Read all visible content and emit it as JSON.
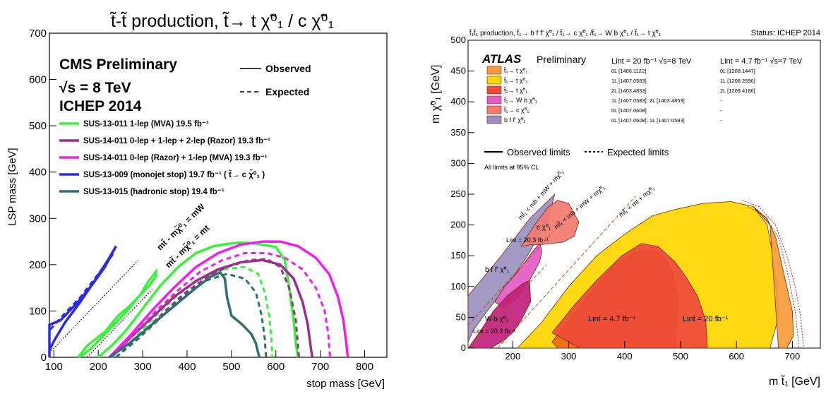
{
  "chart_data": [
    {
      "type": "line",
      "title": "t̃-t̃ production,  t̃→ t χ̃⁰₁ / c χ̃⁰₁",
      "xlabel": "stop mass [GeV]",
      "ylabel": "LSP mass [GeV]",
      "xlim": [
        90,
        850
      ],
      "ylim": [
        0,
        700
      ],
      "xticks": [
        "100",
        "200",
        "300",
        "400",
        "500",
        "600",
        "700",
        "800"
      ],
      "yticks": [
        "0",
        "100",
        "200",
        "300",
        "400",
        "500",
        "600",
        "700"
      ],
      "header_lines": [
        "CMS Preliminary",
        "√s = 8 TeV",
        "ICHEP 2014"
      ],
      "style_legend": {
        "observed": "Observed",
        "expected": "Expected"
      },
      "kinematic_labels": [
        "mt̃ - mχ̃⁰₁ = mW",
        "mt̃ - mχ̃⁰₁ = mt"
      ],
      "kinematic_lines": [
        {
          "name": "mt̃ - mχ̃⁰₁ = mW",
          "x": [
            90,
            290
          ],
          "y": [
            9.6,
            209.6
          ]
        },
        {
          "name": "mt̃ - mχ̃⁰₁ = mt",
          "x": [
            175,
            322
          ],
          "y": [
            0,
            147
          ]
        }
      ],
      "series": [
        {
          "name": "SUS-13-011  1-lep (MVA) 19.5 fb⁻¹",
          "color": "#3ef03e",
          "observed": {
            "x": [
              155,
              175,
              215,
              245,
              270,
              295,
              310,
              330,
              330,
              315,
              290,
              265,
              235,
              210,
              185,
              165,
              155
            ],
            "y": [
              0,
              25,
              55,
              90,
              110,
              135,
              160,
              185,
              175,
              155,
              130,
              100,
              70,
              45,
              20,
              5,
              0
            ]
          },
          "observed_main": {
            "x": [
              200,
              230,
              260,
              300,
              340,
              380,
              420,
              460,
              490,
              525,
              560,
              600,
              620,
              630,
              640,
              645,
              650
            ],
            "y": [
              0,
              25,
              55,
              105,
              155,
              195,
              225,
              240,
              245,
              248,
              245,
              238,
              210,
              150,
              80,
              30,
              0
            ]
          },
          "expected": {
            "x": [
              230,
              280,
              330,
              380,
              430,
              480,
              530,
              560,
              575,
              585,
              590,
              592
            ],
            "y": [
              0,
              40,
              90,
              135,
              170,
              190,
              195,
              180,
              140,
              90,
              40,
              0
            ]
          }
        },
        {
          "name": "SUS-14-011  0-lep + 1-lep + 2-lep (Razor)  19.3 fb⁻¹",
          "color": "#9b2f8e",
          "observed": {
            "x": [
              225,
              270,
              320,
              370,
              420,
              470,
              520,
              570,
              610,
              640,
              660,
              672,
              678,
              682
            ],
            "y": [
              0,
              40,
              85,
              130,
              165,
              190,
              205,
              210,
              200,
              170,
              120,
              70,
              25,
              0
            ]
          },
          "expected": {
            "x": [
              240,
              290,
              340,
              390,
              440,
              490,
              540,
              580,
              610,
              630,
              645,
              652
            ],
            "y": [
              0,
              45,
              90,
              135,
              170,
              195,
              210,
              212,
              195,
              150,
              80,
              0
            ]
          }
        },
        {
          "name": "SUS-14-011  0-lep (Razor) + 1-lep (MVA)  19.3 fb⁻¹",
          "color": "#ee1eee",
          "observed": {
            "x": [
              225,
              270,
              320,
              370,
              420,
              470,
              520,
              570,
              610,
              650,
              690,
              720,
              740,
              752,
              758,
              762
            ],
            "y": [
              0,
              45,
              100,
              150,
              195,
              225,
              243,
              250,
              250,
              240,
              215,
              180,
              130,
              80,
              35,
              0
            ]
          },
          "expected": {
            "x": [
              230,
              280,
              330,
              380,
              430,
              480,
              530,
              580,
              620,
              660,
              690,
              710,
              718,
              722
            ],
            "y": [
              0,
              50,
              100,
              145,
              185,
              210,
              225,
              225,
              215,
              190,
              150,
              100,
              50,
              0
            ]
          }
        },
        {
          "name": "SUS-13-009  (monojet stop)  19.7 fb⁻¹ ( t̃→ c χ̃⁰₁ )",
          "color": "#2b2be6",
          "observed": {
            "x": [
              90,
              90,
              115,
              150,
              185,
              215,
              240,
              225,
              195,
              160,
              125,
              100,
              90
            ],
            "y": [
              0,
              70,
              80,
              115,
              155,
              195,
              240,
              215,
              170,
              120,
              75,
              35,
              15
            ]
          },
          "expected": {
            "x": [
              92,
              120,
              160,
              200,
              235
            ],
            "y": [
              60,
              90,
              130,
              180,
              225
            ]
          }
        },
        {
          "name": "SUS-13-015  (hadronic stop)  19.4 fb⁻¹",
          "color": "#2f6f6f",
          "observed": {
            "x": [
              225,
              270,
              320,
              370,
              420,
              455,
              475,
              485,
              490,
              500,
              525,
              545,
              555,
              560,
              563
            ],
            "y": [
              0,
              30,
              70,
              110,
              150,
              175,
              183,
              170,
              130,
              90,
              70,
              50,
              30,
              10,
              0
            ]
          },
          "expected": {
            "x": [
              240,
              290,
              340,
              390,
              440,
              490,
              530,
              555,
              568,
              575,
              578
            ],
            "y": [
              0,
              40,
              85,
              130,
              165,
              180,
              170,
              140,
              90,
              40,
              0
            ]
          }
        }
      ]
    },
    {
      "type": "area",
      "top_left_title": "t̃₁t̃₁ production, t̃₁→ b f f' χ̃⁰₁ / t̃₁→ c χ̃⁰₁ /t̃₁→ W b χ̃⁰₁ / t̃₁→ t χ̃⁰₁",
      "status": "Status: ICHEP 2014",
      "xlabel": "m t̃₁ [GeV]",
      "ylabel": "m χ̃⁰₁ [GeV]",
      "xlim": [
        120,
        750
      ],
      "ylim": [
        0,
        500
      ],
      "xticks": [
        "200",
        "300",
        "400",
        "500",
        "600",
        "700"
      ],
      "yticks": [
        "0",
        "50",
        "100",
        "150",
        "200",
        "250",
        "300",
        "350",
        "400",
        "450",
        "500"
      ],
      "experiment": "ATLAS",
      "experiment_sub": "Preliminary",
      "lumi_8tev": "Lint = 20 fb⁻¹ √s=8 TeV",
      "lumi_7tev": "Lint = 4.7 fb⁻¹ √s=7 TeV",
      "legend": [
        {
          "label": "t̃₁→ t χ̃⁰₁",
          "color": "#f59b3a",
          "ref8": "0L [1406.1122]",
          "ref7": "0L [1208.1447]"
        },
        {
          "label": "t̃₁→ t χ̃⁰₁",
          "color": "#ffd700",
          "ref8": "1L [1407.0583]",
          "ref7": "1L [1208.2590]"
        },
        {
          "label": "t̃₁→ t χ̃⁰₁",
          "color": "#ee4a3a",
          "ref8": "2L [1403.4853]",
          "ref7": "2L [1209.4186]"
        },
        {
          "label": "t̃₁→ W b χ̃⁰₁",
          "color": "#e45cc4",
          "ref8": "1L [1407.0583], 2L [1403.4853]",
          "ref7": "-"
        },
        {
          "label": "t̃₁→ c χ̃⁰₁",
          "color": "#f27a70",
          "ref8": "0L [1407.0608]",
          "ref7": "-"
        },
        {
          "label": "b f f' χ̃⁰₁",
          "color": "#9a90c0",
          "ref8": "0L [1407.0608], 1L [1407.0583]",
          "ref7": "-"
        }
      ],
      "line_legend": {
        "observed": "Observed limits",
        "expected": "Expected limits"
      },
      "cl_note": "All limits at 95% CL",
      "diag_labels": [
        "mt̃₁ < mb + mW + mχ̃⁰₁",
        "mt̃₁ < mb + mW + mχ̃⁰₁",
        "mt̃₁ < mt + mχ̃⁰₁"
      ],
      "region_labels": {
        "c_chi": "c χ̃⁰₁",
        "c_lumi": "Lint = 20.3 fb⁻¹",
        "bff": "b f f' χ̃⁰₁",
        "wb": "W b χ̃⁰₁",
        "wb_lumi": "Lint = 20.3 fb⁻¹",
        "l47": "Lint = 4.7 fb⁻¹",
        "l20": "Lint = 20 fb⁻¹"
      },
      "diag_lines": [
        {
          "x": [
            120,
            270
          ],
          "y": [
            37,
            187
          ]
        },
        {
          "x": [
            120,
            260
          ],
          "y": [
            -5,
            135
          ]
        },
        {
          "x": [
            173,
            420
          ],
          "y": [
            0,
            247
          ]
        }
      ],
      "regions": [
        {
          "name": "purple-bff",
          "color": "#9a90c0",
          "x": [
            120,
            120,
            175,
            230,
            275,
            262,
            245,
            225,
            200,
            175,
            150,
            130,
            120
          ],
          "y": [
            0,
            85,
            145,
            210,
            250,
            205,
            180,
            148,
            115,
            85,
            55,
            30,
            10
          ]
        },
        {
          "name": "salmon-c",
          "color": "#f27a70",
          "x": [
            215,
            235,
            262,
            280,
            300,
            318,
            310,
            290,
            270,
            250,
            232,
            215
          ],
          "y": [
            165,
            195,
            228,
            240,
            235,
            205,
            182,
            172,
            170,
            168,
            168,
            165
          ]
        },
        {
          "name": "pink-wb",
          "color": "#e45cc4",
          "x": [
            168,
            185,
            205,
            222,
            238,
            248,
            252,
            248,
            230,
            208,
            185,
            168
          ],
          "y": [
            75,
            100,
            120,
            140,
            160,
            170,
            158,
            140,
            110,
            82,
            65,
            75
          ]
        },
        {
          "name": "magenta-wb",
          "color": "#c0207a",
          "x": [
            120,
            140,
            165,
            190,
            218,
            230,
            232,
            215,
            200,
            180,
            160,
            140,
            120
          ],
          "y": [
            0,
            25,
            60,
            85,
            105,
            110,
            75,
            45,
            25,
            10,
            0,
            0,
            0
          ]
        },
        {
          "name": "yellow-1L",
          "color": "#ffd700",
          "x": [
            208,
            250,
            300,
            350,
            400,
            450,
            490,
            540,
            590,
            630,
            655,
            665,
            672,
            675,
            660,
            640,
            600,
            560,
            520,
            470,
            420,
            370,
            320,
            280,
            240,
            208
          ],
          "y": [
            0,
            40,
            100,
            150,
            185,
            215,
            225,
            235,
            238,
            230,
            200,
            150,
            100,
            50,
            0,
            0,
            0,
            0,
            0,
            0,
            0,
            0,
            0,
            0,
            0,
            0
          ]
        },
        {
          "name": "orange-0L",
          "color": "#f59b3a",
          "x": [
            630,
            655,
            670,
            680,
            690,
            700,
            702,
            690,
            675,
            660
          ],
          "y": [
            230,
            210,
            180,
            140,
            100,
            60,
            20,
            0,
            0,
            200
          ]
        },
        {
          "name": "red-2L",
          "color": "#ee4a3a",
          "x": [
            270,
            310,
            350,
            395,
            430,
            460,
            490,
            510,
            530,
            545,
            548,
            520,
            470,
            420,
            370,
            320,
            270
          ],
          "y": [
            25,
            70,
            110,
            150,
            170,
            165,
            140,
            115,
            85,
            45,
            0,
            0,
            0,
            0,
            0,
            0,
            25
          ]
        },
        {
          "name": "dark-orange-7tev",
          "color": "#f06818",
          "x": [
            270,
            300,
            340,
            380,
            420,
            450,
            470,
            485,
            495,
            490,
            460,
            420,
            370,
            320,
            280,
            270
          ],
          "y": [
            10,
            45,
            90,
            135,
            155,
            160,
            150,
            125,
            80,
            0,
            0,
            0,
            0,
            0,
            0,
            10
          ]
        }
      ],
      "expected_lines": [
        {
          "x": [
            610,
            640,
            670,
            690,
            705,
            715,
            720
          ],
          "y": [
            240,
            230,
            200,
            150,
            100,
            50,
            0
          ]
        },
        {
          "x": [
            620,
            650,
            675,
            692,
            705,
            712
          ],
          "y": [
            230,
            215,
            180,
            120,
            60,
            0
          ]
        }
      ]
    }
  ]
}
